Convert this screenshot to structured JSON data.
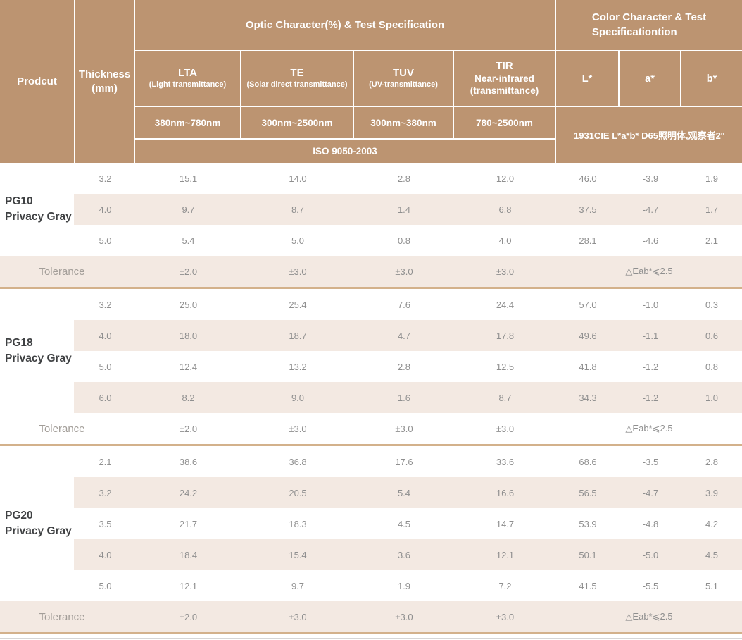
{
  "colors": {
    "header_bg": "#bc9471",
    "stripe": "#f3e9e2",
    "divider": "#d3b18b",
    "header_text": "#ffffff",
    "value_text": "#8f8f8f",
    "product_text": "#3f4143",
    "tolerance_text": "#a39e99"
  },
  "header": {
    "product_label": "Prodcut",
    "thickness_label": [
      "Thickness",
      "(mm)"
    ],
    "optic_banner": "Optic Character(%) & Test Specification",
    "color_banner": [
      "Color Character & Test",
      "Specificationtion"
    ],
    "optic_columns": [
      {
        "abbr": "LTA",
        "desc": [
          "(Light transmittance)"
        ],
        "range": "380nm~780nm"
      },
      {
        "abbr": "TE",
        "desc": [
          "(Solar direct transmittance)"
        ],
        "range": "300nm~2500nm"
      },
      {
        "abbr": "TUV",
        "desc": [
          "(UV-transmittance)"
        ],
        "range": "300nm~380nm"
      },
      {
        "abbr": "TIR",
        "desc": [
          "Near-infrared",
          "(transmittance)"
        ],
        "range": "780~2500nm"
      }
    ],
    "color_columns": [
      "L*",
      "a*",
      "b*"
    ],
    "iso_standard": "ISO 9050-2003",
    "cie_note": "1931CIE L*a*b*  D65照明体,观察者2°"
  },
  "groups": [
    {
      "product": [
        "PG10",
        "Privacy Gray"
      ],
      "rows": [
        {
          "thickness": "3.2",
          "values": [
            "15.1",
            "14.0",
            "2.8",
            "12.0",
            "46.0",
            "-3.9",
            "1.9"
          ]
        },
        {
          "thickness": "4.0",
          "values": [
            "9.7",
            "8.7",
            "1.4",
            "6.8",
            "37.5",
            "-4.7",
            "1.7"
          ]
        },
        {
          "thickness": "5.0",
          "values": [
            "5.4",
            "5.0",
            "0.8",
            "4.0",
            "28.1",
            "-4.6",
            "2.1"
          ]
        }
      ],
      "tolerance": {
        "label": "Tolerance",
        "values": [
          "±2.0",
          "±3.0",
          "±3.0",
          "±3.0"
        ],
        "color": "△Eab*⩽2.5"
      }
    },
    {
      "product": [
        "PG18",
        "Privacy Gray"
      ],
      "rows": [
        {
          "thickness": "3.2",
          "values": [
            "25.0",
            "25.4",
            "7.6",
            "24.4",
            "57.0",
            "-1.0",
            "0.3"
          ]
        },
        {
          "thickness": "4.0",
          "values": [
            "18.0",
            "18.7",
            "4.7",
            "17.8",
            "49.6",
            "-1.1",
            "0.6"
          ]
        },
        {
          "thickness": "5.0",
          "values": [
            "12.4",
            "13.2",
            "2.8",
            "12.5",
            "41.8",
            "-1.2",
            "0.8"
          ]
        },
        {
          "thickness": "6.0",
          "values": [
            "8.2",
            "9.0",
            "1.6",
            "8.7",
            "34.3",
            "-1.2",
            "1.0"
          ]
        }
      ],
      "tolerance": {
        "label": "Tolerance",
        "values": [
          "±2.0",
          "±3.0",
          "±3.0",
          "±3.0"
        ],
        "color": "△Eab*⩽2.5"
      }
    },
    {
      "product": [
        "PG20",
        "Privacy Gray"
      ],
      "rows": [
        {
          "thickness": "2.1",
          "values": [
            "38.6",
            "36.8",
            "17.6",
            "33.6",
            "68.6",
            "-3.5",
            "2.8"
          ]
        },
        {
          "thickness": "3.2",
          "values": [
            "24.2",
            "20.5",
            "5.4",
            "16.6",
            "56.5",
            "-4.7",
            "3.9"
          ]
        },
        {
          "thickness": "3.5",
          "values": [
            "21.7",
            "18.3",
            "4.5",
            "14.7",
            "53.9",
            "-4.8",
            "4.2"
          ]
        },
        {
          "thickness": "4.0",
          "values": [
            "18.4",
            "15.4",
            "3.6",
            "12.1",
            "50.1",
            "-5.0",
            "4.5"
          ]
        },
        {
          "thickness": "5.0",
          "values": [
            "12.1",
            "9.7",
            "1.9",
            "7.2",
            "41.5",
            "-5.5",
            "5.1"
          ]
        }
      ],
      "tolerance": {
        "label": "Tolerance",
        "values": [
          "±2.0",
          "±3.0",
          "±3.0",
          "±3.0"
        ],
        "color": "△Eab*⩽2.5"
      }
    }
  ]
}
